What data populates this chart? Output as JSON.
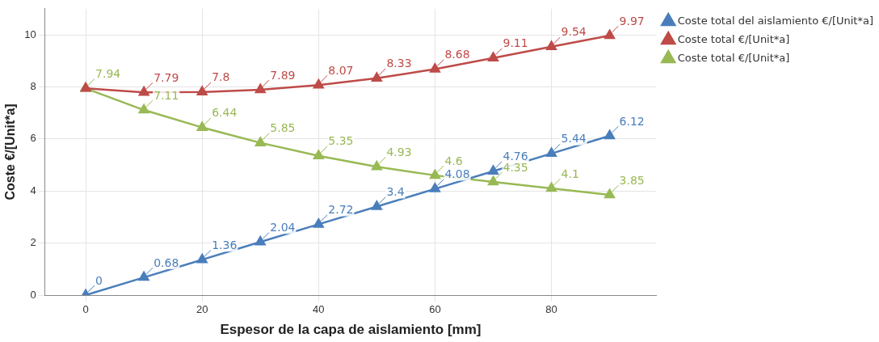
{
  "chart_data": {
    "type": "line",
    "xlabel": "Espesor de la capa de aislamiento [mm]",
    "ylabel": "Coste €/[Unit*a]",
    "x": [
      0,
      10,
      20,
      30,
      40,
      50,
      60,
      70,
      80,
      90
    ],
    "xlim": [
      -7,
      98
    ],
    "xticks": [
      0,
      20,
      40,
      60,
      80
    ],
    "ylim": [
      0,
      11
    ],
    "yticks": [
      0,
      2,
      4,
      6,
      8,
      10
    ],
    "grid": true,
    "legend": "right",
    "marker": "triangle",
    "series": [
      {
        "name": "Coste total del aislamiento €/[Unit*a]",
        "color": "#4a7ebb",
        "values": [
          0,
          0.68,
          1.36,
          2.04,
          2.72,
          3.4,
          4.08,
          4.76,
          5.44,
          6.12
        ],
        "value_labels": [
          "0",
          "0.68",
          "1.36",
          "2.04",
          "2.72",
          "3.4",
          "4.08",
          "4.76",
          "5.44",
          "6.12"
        ]
      },
      {
        "name": "Coste total €/[Unit*a]",
        "color": "#be4b48",
        "values": [
          7.94,
          7.79,
          7.8,
          7.89,
          8.07,
          8.33,
          8.68,
          9.11,
          9.54,
          9.97
        ],
        "value_labels": [
          null,
          "7.79",
          "7.8",
          "7.89",
          "8.07",
          "8.33",
          "8.68",
          "9.11",
          "9.54",
          "9.97"
        ]
      },
      {
        "name": "Coste total €/[Unit*a]",
        "color": "#98b954",
        "values": [
          7.94,
          7.11,
          6.44,
          5.85,
          5.35,
          4.93,
          4.6,
          4.35,
          4.1,
          3.85
        ],
        "value_labels": [
          "7.94",
          "7.11",
          "6.44",
          "5.85",
          "5.35",
          "4.93",
          "4.6",
          "4.35",
          "4.1",
          "3.85"
        ]
      }
    ]
  }
}
